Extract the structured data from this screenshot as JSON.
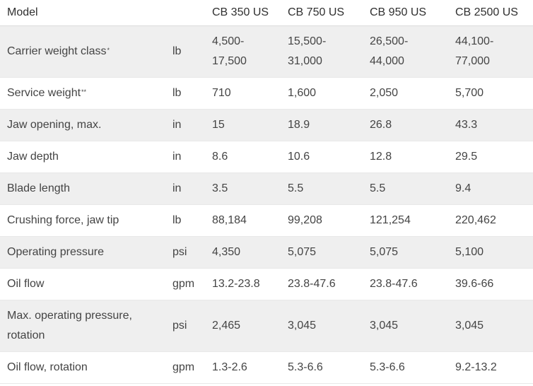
{
  "table": {
    "header": {
      "model_label": "Model",
      "unit_label": "",
      "models": [
        "CB 350 US",
        "CB 750 US",
        "CB 950 US",
        "CB 2500 US"
      ]
    },
    "rows": [
      {
        "label": "Carrier weight class",
        "mark": "*",
        "unit": "lb",
        "values": [
          "4,500-\n17,500",
          "15,500-\n31,000",
          "26,500-\n44,000",
          "44,100-\n77,000"
        ]
      },
      {
        "label": "Service weight",
        "mark": "**",
        "unit": "lb",
        "values": [
          "710",
          "1,600",
          "2,050",
          "5,700"
        ]
      },
      {
        "label": "Jaw opening, max.",
        "mark": "",
        "unit": "in",
        "values": [
          "15",
          "18.9",
          "26.8",
          "43.3"
        ]
      },
      {
        "label": "Jaw depth",
        "mark": "",
        "unit": "in",
        "values": [
          "8.6",
          "10.6",
          "12.8",
          "29.5"
        ]
      },
      {
        "label": "Blade length",
        "mark": "",
        "unit": "in",
        "values": [
          "3.5",
          "5.5",
          "5.5",
          "9.4"
        ]
      },
      {
        "label": "Crushing force, jaw tip",
        "mark": "",
        "unit": "lb",
        "values": [
          "88,184",
          "99,208",
          "121,254",
          "220,462"
        ]
      },
      {
        "label": "Operating pressure",
        "mark": "",
        "unit": "psi",
        "values": [
          "4,350",
          "5,075",
          "5,075",
          "5,100"
        ]
      },
      {
        "label": "Oil flow",
        "mark": "",
        "unit": "gpm",
        "values": [
          "13.2-23.8",
          "23.8-47.6",
          "23.8-47.6",
          "39.6-66"
        ]
      },
      {
        "label": "Max. operating pressure,\nrotation",
        "mark": "",
        "unit": "psi",
        "values": [
          "2,465",
          "3,045",
          "3,045",
          "3,045"
        ]
      },
      {
        "label": "Oil flow, rotation",
        "mark": "",
        "unit": "gpm",
        "values": [
          "1.3-2.6",
          "5.3-6.6",
          "5.3-6.6",
          "9.2-13.2"
        ]
      }
    ]
  },
  "colors": {
    "alt_row_background": "#efefef",
    "text": "#444444",
    "rule": "#dcdcdc"
  }
}
